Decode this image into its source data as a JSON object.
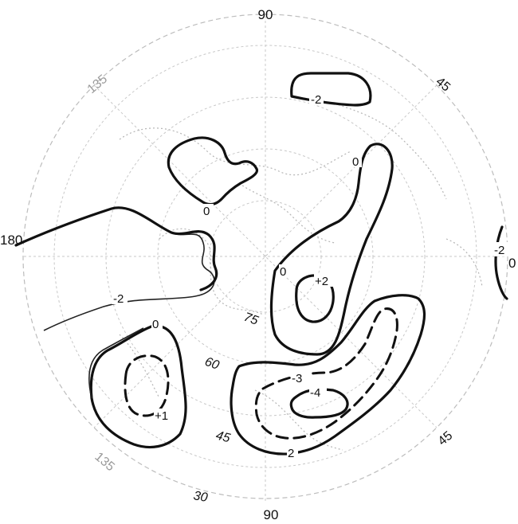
{
  "longitude_labels": {
    "top": "90",
    "upper_left": "135",
    "upper_right": "45",
    "left": "180",
    "right": "0",
    "lower_left": "135",
    "lower_right": "45",
    "bottom": "90"
  },
  "latitude_labels": [
    "75",
    "60",
    "45",
    "30"
  ],
  "contour_labels": {
    "top_minus2": "-2",
    "right_minus2": "-2",
    "zero_upper_left": "0",
    "zero_upper_right": "0",
    "zero_center": "0",
    "plus2": "+2",
    "minus2_left": "-2",
    "zero_lower_left": "0",
    "plus1": "+1",
    "minus3": "-3",
    "minus4": "-4",
    "two_bottom": "2"
  },
  "colors": {
    "contour": "#111111",
    "grid": "#c8c8c8",
    "coastline": "#b5b5b5"
  }
}
